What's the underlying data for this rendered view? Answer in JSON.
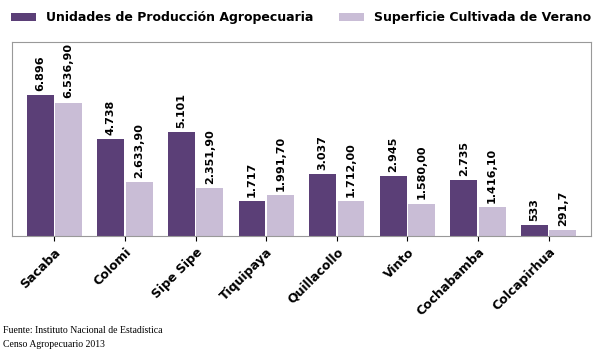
{
  "chart_data": {
    "type": "bar",
    "categories": [
      "Sacaba",
      "Colomi",
      "Sipe Sipe",
      "Tiquipaya",
      "Quillacollo",
      "Vinto",
      "Cochabamba",
      "Colcapirhua"
    ],
    "series": [
      {
        "name": "Unidades de Producción Agropecuaria",
        "color": "#5b3f77",
        "values": [
          6896,
          4738,
          5101,
          1717,
          3037,
          2945,
          2735,
          533
        ],
        "value_labels": [
          "6.896",
          "4.738",
          "5.101",
          "1.717",
          "3.037",
          "2.945",
          "2.735",
          "533"
        ]
      },
      {
        "name": "Superficie Cultivada de Verano",
        "color": "#c9bdd6",
        "values": [
          6536.9,
          2633.9,
          2351.9,
          1991.7,
          1712.0,
          1580.0,
          1416.1,
          291.7
        ],
        "value_labels": [
          "6.536,90",
          "2.633,90",
          "2.351,90",
          "1.991,70",
          "1.712,00",
          "1.580,00",
          "1.416,10",
          "291,7"
        ]
      }
    ],
    "ylim": [
      0,
      9500
    ],
    "tick_labels": "x",
    "data_labels": true,
    "legend": "upper left",
    "annotations": [
      "Fuente: Instituto Nacional de Estadística",
      "Censo Agropecuario 2013"
    ]
  }
}
